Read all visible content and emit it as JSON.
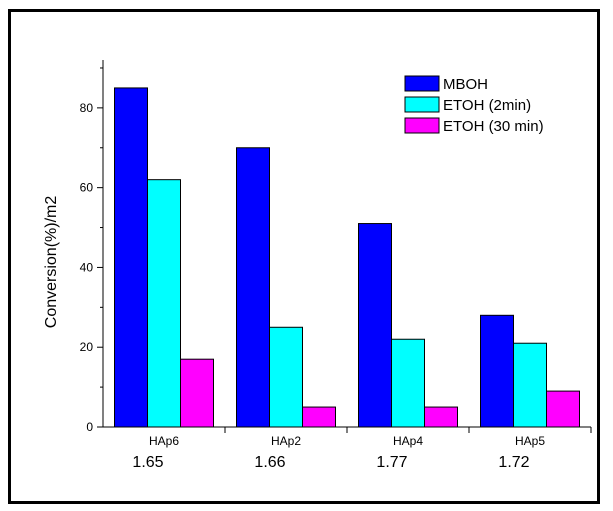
{
  "chart_data": {
    "type": "bar",
    "title": "",
    "xlabel": "",
    "ylabel": "Conversion(%)/m2",
    "ylim": [
      0,
      92
    ],
    "yticks": [
      0,
      20,
      40,
      60,
      80
    ],
    "categories": [
      "HAp6",
      "HAp2",
      "HAp4",
      "HAp5"
    ],
    "category_values": [
      "1.65",
      "1.66",
      "1.77",
      "1.72"
    ],
    "series": [
      {
        "name": "MBOH",
        "color": "#0000ff",
        "values": [
          85,
          70,
          51,
          28
        ]
      },
      {
        "name": "ETOH (2min)",
        "color": "#00ffff",
        "values": [
          62,
          25,
          22,
          21
        ]
      },
      {
        "name": "ETOH (30 min)",
        "color": "#ff00ff",
        "values": [
          17,
          5,
          5,
          9
        ]
      }
    ],
    "grid": false,
    "legend_position": "top-right"
  }
}
